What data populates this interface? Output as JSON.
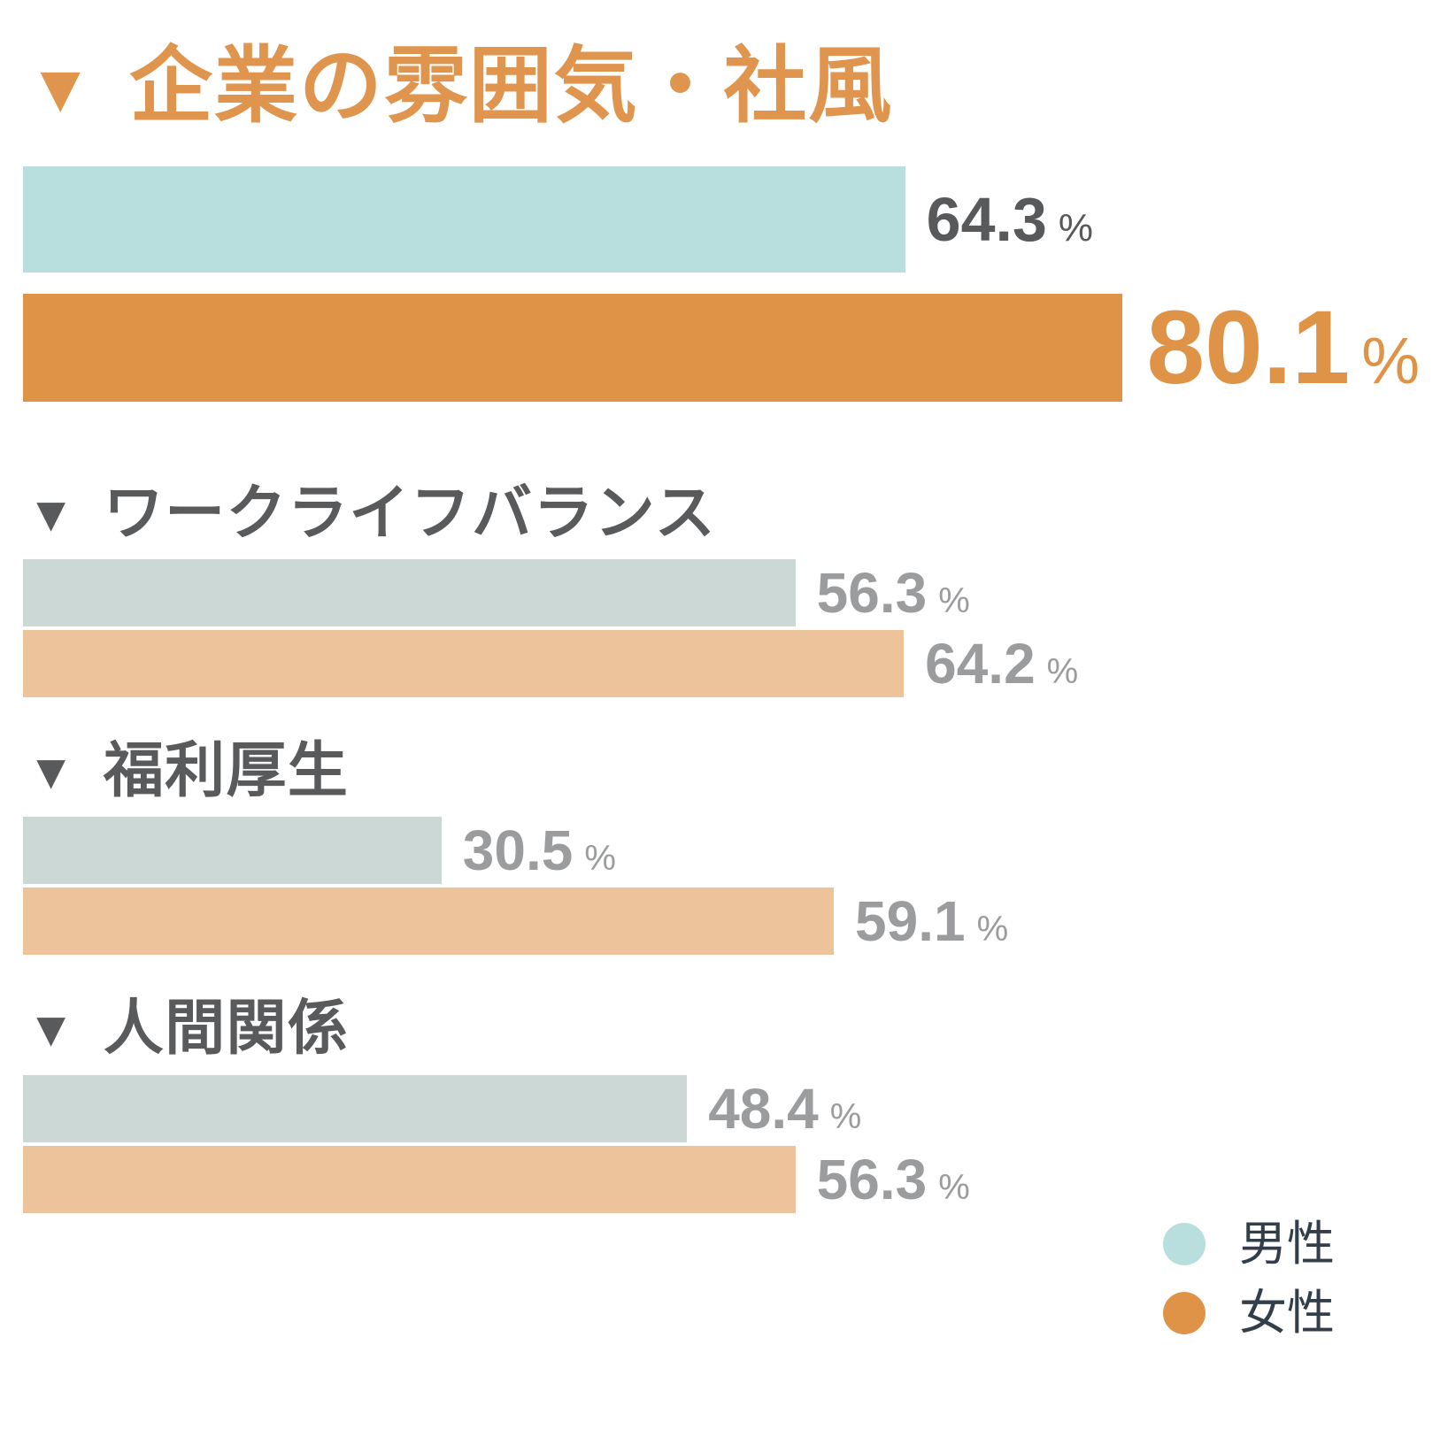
{
  "chart_data": {
    "type": "bar",
    "orientation": "horizontal",
    "unit": "%",
    "title_marker": "▼",
    "categories": [
      "企業の雰囲気・社風",
      "ワークライフバランス",
      "福利厚生",
      "人間関係"
    ],
    "series": [
      {
        "name": "男性",
        "values": [
          64.3,
          56.3,
          30.5,
          48.4
        ]
      },
      {
        "name": "女性",
        "values": [
          80.1,
          64.2,
          59.1,
          56.3
        ]
      }
    ],
    "xlim": [
      0,
      100
    ],
    "grid": false,
    "axis_labels_shown": false,
    "value_labels_shown": true,
    "legend_position": "bottom-right",
    "emphasized_category": "企業の雰囲気・社風",
    "colors": {
      "male": "#b8dfde",
      "female": "#df9347",
      "male_muted": "#cbd8d6",
      "female_muted": "#ecc39a",
      "title_accent": "#e0954e",
      "title_gray": "#595a5c",
      "value_gray": "#9b9c9e",
      "value_dark": "#58595a",
      "legend_text": "#333e4b"
    }
  },
  "legend": {
    "items": [
      {
        "label": "男性",
        "color": "#b8dfde"
      },
      {
        "label": "女性",
        "color": "#df9347"
      }
    ]
  }
}
